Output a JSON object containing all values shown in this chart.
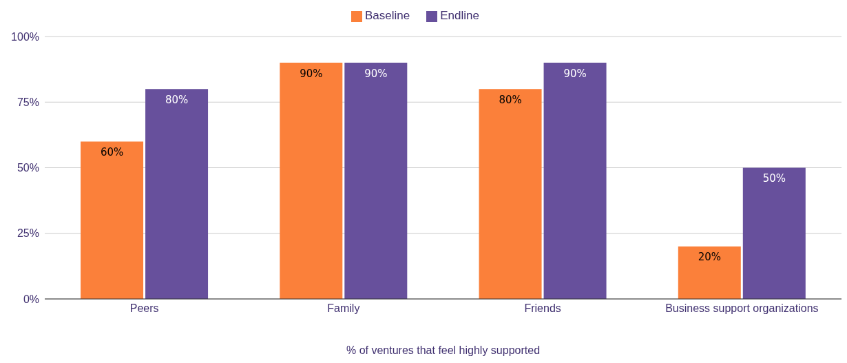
{
  "chart_data": {
    "type": "bar",
    "xlabel": "% of ventures that feel highly supported",
    "categories": [
      "Peers",
      "Family",
      "Friends",
      "Business support organizations"
    ],
    "series": [
      {
        "name": "Baseline",
        "color": "#fb803a",
        "values": [
          60,
          90,
          80,
          20
        ],
        "value_labels": [
          "60%",
          "90%",
          "80%",
          "20%"
        ]
      },
      {
        "name": "Endline",
        "color": "#67509c",
        "values": [
          80,
          90,
          90,
          50
        ],
        "value_labels": [
          "80%",
          "90%",
          "90%",
          "50%"
        ]
      }
    ],
    "ylim": [
      0,
      100
    ],
    "yticks": [
      {
        "value": 0,
        "label": "0%"
      },
      {
        "value": 25,
        "label": "25%"
      },
      {
        "value": 50,
        "label": "50%"
      },
      {
        "value": 75,
        "label": "75%"
      },
      {
        "value": 100,
        "label": "100%"
      }
    ],
    "grid": "y",
    "legend": "top"
  }
}
